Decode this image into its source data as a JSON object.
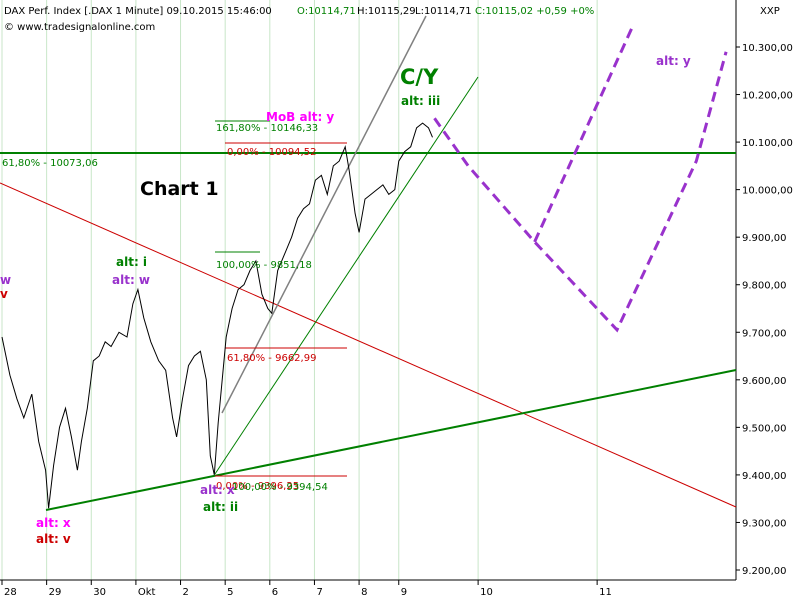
{
  "header": {
    "instrument": "DAX Perf. Index [.DAX  1 Minute] 09.10.2015 15:46:00",
    "open": "O:10114,71",
    "high": "H:10115,29",
    "low": "L:10114,71",
    "close": "C:10115,02 +0,59 +0%",
    "source": "© www.tradesignalonline.com",
    "axis_unit": "XXP"
  },
  "colors": {
    "price": "#000000",
    "trend_green": "#008000",
    "red_line": "#cc0000",
    "grey_channel": "#808080",
    "forecast": "#9932cc",
    "magenta": "#ff00ff",
    "grid": "#c8e6c8"
  },
  "chart_data": {
    "type": "line",
    "title": "Chart 1",
    "ylim": [
      9180,
      10380
    ],
    "y_ticks": [
      "10.300,00",
      "10.200,00",
      "10.100,00",
      "10.000,00",
      "9.900,00",
      "9.800,00",
      "9.700,00",
      "9.600,00",
      "9.500,00",
      "9.400,00",
      "9.300,00",
      "9.200,00"
    ],
    "y_tick_values": [
      10300,
      10200,
      10100,
      10000,
      9900,
      9800,
      9700,
      9600,
      9500,
      9400,
      9300,
      9200
    ],
    "x_ticks": [
      "28",
      "29",
      "30",
      "Okt",
      "2",
      "5",
      "6",
      "7",
      "8",
      "9",
      "10",
      "11"
    ],
    "x_tick_index": [
      0,
      45,
      90,
      135,
      180,
      225,
      270,
      315,
      360,
      400,
      480,
      600
    ],
    "x_max": 740,
    "series": [
      {
        "points": [
          [
            0,
            9690
          ],
          [
            8,
            9610
          ],
          [
            15,
            9560
          ],
          [
            22,
            9520
          ],
          [
            30,
            9570
          ],
          [
            37,
            9470
          ],
          [
            44,
            9410
          ],
          [
            47,
            9330
          ],
          [
            52,
            9420
          ],
          [
            58,
            9500
          ],
          [
            64,
            9540
          ],
          [
            70,
            9480
          ],
          [
            76,
            9410
          ],
          [
            80,
            9470
          ],
          [
            86,
            9540
          ],
          [
            92,
            9640
          ],
          [
            98,
            9650
          ],
          [
            104,
            9680
          ],
          [
            110,
            9670
          ],
          [
            118,
            9700
          ],
          [
            126,
            9690
          ],
          [
            132,
            9760
          ],
          [
            137,
            9790
          ],
          [
            143,
            9730
          ],
          [
            150,
            9680
          ],
          [
            158,
            9640
          ],
          [
            165,
            9620
          ],
          [
            172,
            9520
          ],
          [
            176,
            9480
          ],
          [
            182,
            9560
          ],
          [
            188,
            9630
          ],
          [
            194,
            9650
          ],
          [
            200,
            9660
          ],
          [
            206,
            9600
          ],
          [
            210,
            9440
          ],
          [
            214,
            9400
          ],
          [
            218,
            9510
          ],
          [
            222,
            9600
          ],
          [
            226,
            9690
          ],
          [
            232,
            9750
          ],
          [
            238,
            9790
          ],
          [
            244,
            9800
          ],
          [
            250,
            9830
          ],
          [
            256,
            9850
          ],
          [
            262,
            9780
          ],
          [
            268,
            9750
          ],
          [
            272,
            9740
          ],
          [
            278,
            9830
          ],
          [
            286,
            9870
          ],
          [
            292,
            9900
          ],
          [
            298,
            9940
          ],
          [
            304,
            9960
          ],
          [
            310,
            9970
          ],
          [
            316,
            10020
          ],
          [
            322,
            10030
          ],
          [
            328,
            9990
          ],
          [
            334,
            10050
          ],
          [
            340,
            10060
          ],
          [
            346,
            10090
          ],
          [
            350,
            10040
          ],
          [
            356,
            9950
          ],
          [
            360,
            9910
          ],
          [
            366,
            9980
          ],
          [
            372,
            9990
          ],
          [
            378,
            10000
          ],
          [
            384,
            10010
          ],
          [
            390,
            9990
          ],
          [
            396,
            10000
          ],
          [
            400,
            10060
          ],
          [
            406,
            10080
          ],
          [
            412,
            10090
          ],
          [
            418,
            10130
          ],
          [
            424,
            10140
          ],
          [
            430,
            10130
          ],
          [
            434,
            10110
          ]
        ]
      }
    ],
    "forecast": [
      [
        436,
        10150
      ],
      [
        470,
        10050
      ],
      [
        537,
        9890
      ],
      [
        620,
        9705
      ],
      [
        700,
        10060
      ],
      [
        730,
        10290
      ]
    ],
    "forecast2": [
      [
        537,
        9890
      ],
      [
        635,
        10340
      ]
    ]
  },
  "levels": {
    "fib_618_top": "61,80% - 10073,06",
    "fib_1618": "161,80% - 10146,33",
    "fib_0_upper": "0,00% - 10094,52",
    "fib_100": "100,00% - 9851,18",
    "fib_618_mid": "61,80% - 9662,99",
    "fib_0_lower": "0,00% - 9396,25",
    "fib_overlap": "100,00% - 9394,54"
  },
  "labels": {
    "cy": "C/Y",
    "alt_iii": "alt: iii",
    "mob": "MoB alt: y",
    "alt_i": "alt: i",
    "alt_w": "alt: w",
    "alt_x_low": "alt: x",
    "alt_ii": "alt: ii",
    "alt_x_left": "alt: x",
    "alt_v": "alt: v",
    "alt_y_right": "alt: y",
    "edge_w": "w",
    "edge_v": "v"
  }
}
